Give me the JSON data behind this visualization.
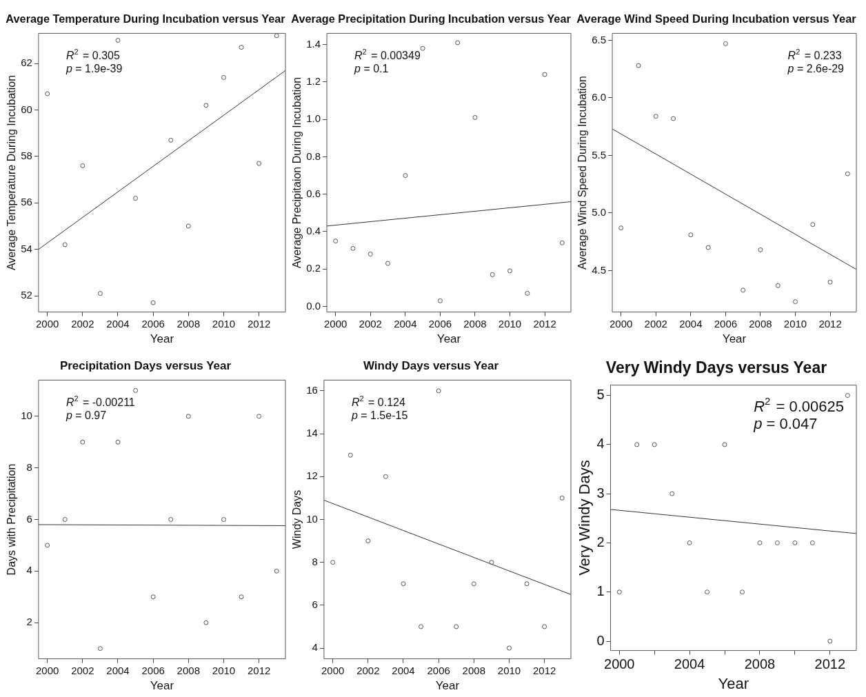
{
  "chart_data": [
    {
      "type": "scatter",
      "title": "Average Temperature During Incubation versus Year",
      "xlabel": "Year",
      "ylabel": "Average Temperature During Incubation",
      "annotations": [
        "R$^{2}$ = 0.305",
        "p = 1.9e-39"
      ],
      "xlim": [
        1999.5,
        2013.5
      ],
      "xticks": [
        2000,
        2002,
        2004,
        2006,
        2008,
        2010,
        2012
      ],
      "ylim": [
        51.3,
        63.3
      ],
      "yticks": [
        52,
        54,
        56,
        58,
        60,
        62
      ],
      "series": [
        {
          "type": "scatter",
          "marker": "circle",
          "color": "#555555",
          "x": [
            2000,
            2001,
            2002,
            2003,
            2004,
            2005,
            2006,
            2007,
            2008,
            2009,
            2010,
            2011,
            2012,
            2013
          ],
          "values": [
            60.7,
            54.2,
            57.6,
            52.1,
            63.0,
            56.2,
            51.7,
            58.7,
            55.0,
            60.2,
            61.4,
            62.7,
            57.7,
            63.2
          ]
        },
        {
          "type": "line",
          "marker": "none",
          "color": "#333333",
          "x": [
            1999.5,
            2013.5
          ],
          "values": [
            54.0,
            61.7
          ]
        }
      ]
    },
    {
      "type": "scatter",
      "title": "Average Precipitation During Incubation versus Year",
      "xlabel": "Year",
      "ylabel": "Average Precipitaion During Incubation",
      "annotations": [
        "R$^{2}$ = 0.00349",
        "p = 0.1"
      ],
      "xlim": [
        1999.5,
        2013.5
      ],
      "xticks": [
        2000,
        2002,
        2004,
        2006,
        2008,
        2010,
        2012
      ],
      "ylim": [
        -0.03,
        1.46
      ],
      "yticks": [
        {
          "value": 0,
          "label": "0.0"
        },
        {
          "value": 0.2,
          "label": "0.2"
        },
        {
          "value": 0.4,
          "label": "0.4"
        },
        {
          "value": 0.6,
          "label": "0.6"
        },
        {
          "value": 0.8,
          "label": "0.8"
        },
        {
          "value": 1,
          "label": "1.0"
        },
        {
          "value": 1.2,
          "label": "1.2"
        },
        {
          "value": 1.4,
          "label": "1.4"
        }
      ],
      "series": [
        {
          "type": "scatter",
          "marker": "circle",
          "color": "#555555",
          "x": [
            2000,
            2001,
            2002,
            2003,
            2004,
            2005,
            2006,
            2007,
            2008,
            2009,
            2010,
            2011,
            2012,
            2013
          ],
          "values": [
            0.35,
            0.31,
            0.28,
            0.23,
            0.7,
            1.38,
            0.03,
            1.41,
            1.01,
            0.17,
            0.19,
            0.07,
            1.24,
            0.34
          ]
        },
        {
          "type": "line",
          "marker": "none",
          "color": "#333333",
          "x": [
            1999.5,
            2013.5
          ],
          "values": [
            0.43,
            0.56
          ]
        }
      ]
    },
    {
      "type": "scatter",
      "title": "Average Wind Speed During Incubation versus Year",
      "xlabel": "Year",
      "ylabel": "Average Wind Speed During Incubation",
      "annotations": [
        "R$^{2}$ = 0.233",
        "p = 2.6e-29"
      ],
      "xlim": [
        1999.5,
        2013.5
      ],
      "xticks": [
        2000,
        2002,
        2004,
        2006,
        2008,
        2010,
        2012
      ],
      "ylim": [
        4.14,
        6.56
      ],
      "yticks": [
        {
          "value": 4.5,
          "label": "4.5"
        },
        {
          "value": 5,
          "label": "5.0"
        },
        {
          "value": 5.5,
          "label": "5.5"
        },
        {
          "value": 6,
          "label": "6.0"
        },
        {
          "value": 6.5,
          "label": "6.5"
        }
      ],
      "series": [
        {
          "type": "scatter",
          "marker": "circle",
          "color": "#555555",
          "x": [
            2000,
            2001,
            2002,
            2003,
            2004,
            2005,
            2006,
            2007,
            2008,
            2009,
            2010,
            2011,
            2012,
            2013
          ],
          "values": [
            4.87,
            6.28,
            5.84,
            5.82,
            4.81,
            4.7,
            6.47,
            4.33,
            4.68,
            4.37,
            4.23,
            4.9,
            4.4,
            5.34
          ]
        },
        {
          "type": "line",
          "marker": "none",
          "color": "#333333",
          "x": [
            1999.5,
            2013.5
          ],
          "values": [
            5.73,
            4.51
          ]
        }
      ]
    },
    {
      "type": "scatter",
      "title": "Precipitation Days versus Year",
      "xlabel": "Year",
      "ylabel": "Days with Precipitation",
      "annotations": [
        "R$^{2}$ = -0.00211",
        "p = 0.97"
      ],
      "xlim": [
        1999.5,
        2013.5
      ],
      "xticks": [
        2000,
        2002,
        2004,
        2006,
        2008,
        2010,
        2012
      ],
      "ylim": [
        0.6,
        11.4
      ],
      "yticks": [
        2,
        4,
        6,
        8,
        10
      ],
      "series": [
        {
          "type": "scatter",
          "marker": "circle",
          "color": "#555555",
          "x": [
            2000,
            2001,
            2002,
            2003,
            2004,
            2005,
            2006,
            2007,
            2008,
            2009,
            2010,
            2011,
            2012,
            2013
          ],
          "values": [
            5,
            6,
            9,
            1,
            9,
            11,
            3,
            6,
            10,
            2,
            6,
            3,
            10,
            4
          ]
        },
        {
          "type": "line",
          "marker": "none",
          "color": "#333333",
          "x": [
            1999.5,
            2013.5
          ],
          "values": [
            5.8,
            5.76
          ]
        }
      ]
    },
    {
      "type": "scatter",
      "title": "Windy Days versus Year",
      "xlabel": "Year",
      "ylabel": "Windy Days",
      "annotations": [
        "R$^{2}$ = 0.124",
        "p = 1.5e-15"
      ],
      "xlim": [
        1999.5,
        2013.5
      ],
      "xticks": [
        2000,
        2002,
        2004,
        2006,
        2008,
        2010,
        2012
      ],
      "ylim": [
        3.5,
        16.5
      ],
      "yticks": [
        4,
        6,
        8,
        10,
        12,
        14,
        16
      ],
      "series": [
        {
          "type": "scatter",
          "marker": "circle",
          "color": "#555555",
          "x": [
            2000,
            2001,
            2002,
            2003,
            2004,
            2005,
            2006,
            2007,
            2008,
            2009,
            2010,
            2011,
            2012,
            2013
          ],
          "values": [
            8,
            13,
            9,
            12,
            7,
            5,
            16,
            5,
            7,
            8,
            4,
            7,
            5,
            11
          ]
        },
        {
          "type": "line",
          "marker": "none",
          "color": "#333333",
          "x": [
            1999.5,
            2013.5
          ],
          "values": [
            10.9,
            6.5
          ]
        }
      ]
    },
    {
      "type": "scatter",
      "title": "Very Windy Days versus Year",
      "xlabel": "Year",
      "ylabel": "Very Windy Days",
      "annotations": [
        "R$^{2}$ = 0.00625",
        "p = 0.047"
      ],
      "xlim": [
        1999.5,
        2013.5
      ],
      "xticks": [
        2000,
        {
          "value": 2002,
          "label": null
        },
        2004,
        {
          "value": 2006,
          "label": null
        },
        2008,
        {
          "value": 2010,
          "label": null
        },
        2012
      ],
      "ylim": [
        -0.19,
        5.21
      ],
      "yticks": [
        0,
        1,
        2,
        3,
        4,
        5
      ],
      "series": [
        {
          "type": "scatter",
          "marker": "circle",
          "color": "#555555",
          "x": [
            2000,
            2001,
            2002,
            2003,
            2004,
            2005,
            2006,
            2007,
            2008,
            2009,
            2010,
            2011,
            2012,
            2013
          ],
          "values": [
            1,
            4,
            4,
            3,
            2,
            1,
            4,
            1,
            2,
            2,
            2,
            2,
            0,
            5
          ]
        },
        {
          "type": "line",
          "marker": "none",
          "color": "#333333",
          "x": [
            1999.5,
            2013.5
          ],
          "values": [
            2.68,
            2.19
          ]
        }
      ]
    }
  ]
}
